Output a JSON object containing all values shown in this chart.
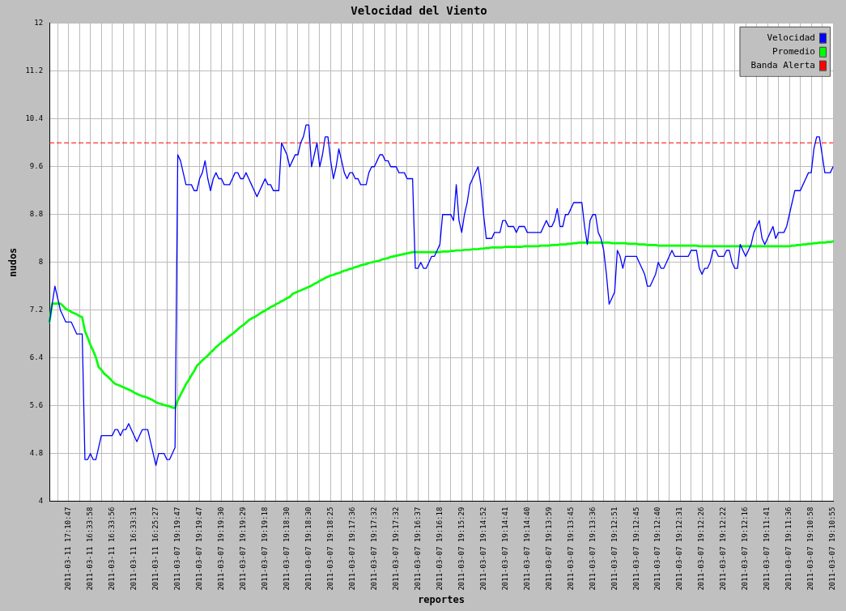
{
  "chart_data": {
    "type": "line",
    "title": "Velocidad del Viento",
    "xlabel": "reportes",
    "ylabel": "nudos",
    "categories": [
      null,
      null,
      null,
      null,
      null,
      null,
      null,
      "2011-03-11 17:10:47",
      null,
      null,
      null,
      null,
      null,
      null,
      null,
      "2011-03-11 16:33:58",
      null,
      null,
      null,
      null,
      null,
      null,
      null,
      "2011-03-11 16:33:56",
      null,
      null,
      null,
      null,
      null,
      null,
      null,
      "2011-03-11 16:33:31",
      null,
      null,
      null,
      null,
      null,
      null,
      null,
      "2011-03-11 16:25:27",
      null,
      null,
      null,
      null,
      null,
      null,
      null,
      "2011-03-07 19:19:47",
      null,
      null,
      null,
      null,
      null,
      null,
      null,
      "2011-03-07 19:19:47",
      null,
      null,
      null,
      null,
      null,
      null,
      null,
      "2011-03-07 19:19:30",
      null,
      null,
      null,
      null,
      null,
      null,
      null,
      "2011-03-07 19:19:29",
      null,
      null,
      null,
      null,
      null,
      null,
      null,
      "2011-03-07 19:19:18",
      null,
      null,
      null,
      null,
      null,
      null,
      null,
      "2011-03-07 19:18:30",
      null,
      null,
      null,
      null,
      null,
      null,
      null,
      "2011-03-07 19:18:30",
      null,
      null,
      null,
      null,
      null,
      null,
      null,
      "2011-03-07 19:18:25",
      null,
      null,
      null,
      null,
      null,
      null,
      null,
      "2011-03-07 19:17:36",
      null,
      null,
      null,
      null,
      null,
      null,
      null,
      "2011-03-07 19:17:32",
      null,
      null,
      null,
      null,
      null,
      null,
      null,
      "2011-03-07 19:17:32",
      null,
      null,
      null,
      null,
      null,
      null,
      null,
      "2011-03-07 19:16:37",
      null,
      null,
      null,
      null,
      null,
      null,
      null,
      "2011-03-07 19:16:18",
      null,
      null,
      null,
      null,
      null,
      null,
      null,
      "2011-03-07 19:15:29",
      null,
      null,
      null,
      null,
      null,
      null,
      null,
      "2011-03-07 19:14:52",
      null,
      null,
      null,
      null,
      null,
      null,
      null,
      "2011-03-07 19:14:41",
      null,
      null,
      null,
      null,
      null,
      null,
      null,
      "2011-03-07 19:14:40",
      null,
      null,
      null,
      null,
      null,
      null,
      null,
      "2011-03-07 19:13:59",
      null,
      null,
      null,
      null,
      null,
      null,
      null,
      "2011-03-07 19:13:45",
      null,
      null,
      null,
      null,
      null,
      null,
      null,
      "2011-03-07 19:13:36",
      null,
      null,
      null,
      null,
      null,
      null,
      null,
      "2011-03-07 19:12:51",
      null,
      null,
      null,
      null,
      null,
      null,
      null,
      "2011-03-07 19:12:45",
      null,
      null,
      null,
      null,
      null,
      null,
      null,
      "2011-03-07 19:12:40",
      null,
      null,
      null,
      null,
      null,
      null,
      null,
      "2011-03-07 19:12:31",
      null,
      null,
      null,
      null,
      null,
      null,
      null,
      "2011-03-07 19:12:26",
      null,
      null,
      null,
      null,
      null,
      null,
      null,
      "2011-03-07 19:12:22",
      null,
      null,
      null,
      null,
      null,
      null,
      null,
      "2011-03-07 19:12:16",
      null,
      null,
      null,
      null,
      null,
      null,
      null,
      "2011-03-07 19:11:41",
      null,
      null,
      null,
      null,
      null,
      null,
      null,
      "2011-03-07 19:11:36",
      null,
      null,
      null,
      null,
      null,
      null,
      null,
      "2011-03-07 19:10:58",
      null,
      null,
      null,
      null,
      null,
      null,
      null,
      "2011-03-07 19:10:55"
    ],
    "series": [
      {
        "name": "Velocidad",
        "color": "#0000ff",
        "values": [
          7.0,
          7.3,
          7.6,
          7.4,
          7.2,
          7.1,
          7.0,
          7.0,
          7.0,
          6.9,
          6.8,
          6.8,
          6.8,
          4.7,
          4.7,
          4.8,
          4.7,
          4.7,
          4.9,
          5.1,
          5.1,
          5.1,
          5.1,
          5.1,
          5.2,
          5.2,
          5.1,
          5.2,
          5.2,
          5.3,
          5.2,
          5.1,
          5.0,
          5.1,
          5.2,
          5.2,
          5.2,
          5.0,
          4.8,
          4.6,
          4.8,
          4.8,
          4.8,
          4.7,
          4.7,
          4.8,
          4.9,
          9.8,
          9.7,
          9.5,
          9.3,
          9.3,
          9.3,
          9.2,
          9.2,
          9.4,
          9.5,
          9.7,
          9.4,
          9.2,
          9.4,
          9.5,
          9.4,
          9.4,
          9.3,
          9.3,
          9.3,
          9.4,
          9.5,
          9.5,
          9.4,
          9.4,
          9.5,
          9.4,
          9.3,
          9.2,
          9.1,
          9.2,
          9.3,
          9.4,
          9.3,
          9.3,
          9.2,
          9.2,
          9.2,
          10.0,
          9.9,
          9.8,
          9.6,
          9.7,
          9.8,
          9.8,
          10.0,
          10.1,
          10.3,
          10.3,
          9.6,
          9.8,
          10.0,
          9.6,
          9.8,
          10.1,
          10.1,
          9.7,
          9.4,
          9.6,
          9.9,
          9.7,
          9.5,
          9.4,
          9.5,
          9.5,
          9.4,
          9.4,
          9.3,
          9.3,
          9.3,
          9.5,
          9.6,
          9.6,
          9.7,
          9.8,
          9.8,
          9.7,
          9.7,
          9.6,
          9.6,
          9.6,
          9.5,
          9.5,
          9.5,
          9.4,
          9.4,
          9.4,
          7.9,
          7.9,
          8.0,
          7.9,
          7.9,
          8.0,
          8.1,
          8.1,
          8.2,
          8.3,
          8.8,
          8.8,
          8.8,
          8.8,
          8.7,
          9.3,
          8.7,
          8.5,
          8.8,
          9.0,
          9.3,
          9.4,
          9.5,
          9.6,
          9.3,
          8.8,
          8.4,
          8.4,
          8.4,
          8.5,
          8.5,
          8.5,
          8.7,
          8.7,
          8.6,
          8.6,
          8.6,
          8.5,
          8.6,
          8.6,
          8.6,
          8.5,
          8.5,
          8.5,
          8.5,
          8.5,
          8.5,
          8.6,
          8.7,
          8.6,
          8.6,
          8.7,
          8.9,
          8.6,
          8.6,
          8.8,
          8.8,
          8.9,
          9.0,
          9.0,
          9.0,
          9.0,
          8.6,
          8.3,
          8.7,
          8.8,
          8.8,
          8.5,
          8.4,
          8.2,
          7.8,
          7.3,
          7.4,
          7.5,
          8.2,
          8.1,
          7.9,
          8.1,
          8.1,
          8.1,
          8.1,
          8.1,
          8.0,
          7.9,
          7.8,
          7.6,
          7.6,
          7.7,
          7.8,
          8.0,
          7.9,
          7.9,
          8.0,
          8.1,
          8.2,
          8.1,
          8.1,
          8.1,
          8.1,
          8.1,
          8.1,
          8.2,
          8.2,
          8.2,
          7.9,
          7.8,
          7.9,
          7.9,
          8.0,
          8.2,
          8.2,
          8.1,
          8.1,
          8.1,
          8.2,
          8.2,
          8.0,
          7.9,
          7.9,
          8.3,
          8.2,
          8.1,
          8.2,
          8.3,
          8.5,
          8.6,
          8.7,
          8.4,
          8.3,
          8.4,
          8.5,
          8.6,
          8.4,
          8.5,
          8.5,
          8.5,
          8.6,
          8.8,
          9.0,
          9.2,
          9.2,
          9.2,
          9.3,
          9.4,
          9.5,
          9.5,
          9.9,
          10.1,
          10.1,
          9.8,
          9.5,
          9.5,
          9.5,
          9.6
        ]
      },
      {
        "name": "Promedio",
        "color": "#00ff00",
        "values": [
          7.0,
          7.31,
          7.31,
          7.31,
          7.31,
          7.27,
          7.22,
          7.2,
          7.17,
          7.15,
          7.13,
          7.1,
          7.08,
          6.85,
          6.74,
          6.62,
          6.52,
          6.41,
          6.25,
          6.2,
          6.14,
          6.1,
          6.06,
          6.01,
          5.97,
          5.95,
          5.93,
          5.91,
          5.89,
          5.87,
          5.85,
          5.82,
          5.8,
          5.78,
          5.76,
          5.75,
          5.73,
          5.71,
          5.69,
          5.66,
          5.64,
          5.63,
          5.61,
          5.6,
          5.59,
          5.57,
          5.56,
          5.69,
          5.78,
          5.87,
          5.96,
          6.03,
          6.11,
          6.18,
          6.27,
          6.31,
          6.36,
          6.4,
          6.44,
          6.49,
          6.53,
          6.58,
          6.62,
          6.66,
          6.69,
          6.73,
          6.77,
          6.8,
          6.84,
          6.88,
          6.92,
          6.95,
          6.99,
          7.03,
          7.06,
          7.08,
          7.11,
          7.14,
          7.17,
          7.19,
          7.22,
          7.25,
          7.27,
          7.3,
          7.32,
          7.35,
          7.37,
          7.4,
          7.42,
          7.47,
          7.49,
          7.51,
          7.53,
          7.55,
          7.57,
          7.59,
          7.61,
          7.64,
          7.66,
          7.69,
          7.71,
          7.74,
          7.76,
          7.78,
          7.79,
          7.81,
          7.82,
          7.84,
          7.86,
          7.87,
          7.89,
          7.9,
          7.92,
          7.93,
          7.95,
          7.96,
          7.97,
          7.99,
          8.0,
          8.01,
          8.02,
          8.03,
          8.05,
          8.06,
          8.07,
          8.09,
          8.1,
          8.11,
          8.12,
          8.13,
          8.14,
          8.15,
          8.16,
          8.17,
          8.17,
          8.17,
          8.17,
          8.17,
          8.17,
          8.17,
          8.17,
          8.17,
          8.17,
          8.17,
          8.18,
          8.18,
          8.18,
          8.19,
          8.19,
          8.2,
          8.2,
          8.2,
          8.21,
          8.21,
          8.21,
          8.22,
          8.22,
          8.22,
          8.23,
          8.23,
          8.24,
          8.24,
          8.25,
          8.25,
          8.25,
          8.25,
          8.25,
          8.26,
          8.26,
          8.26,
          8.26,
          8.26,
          8.26,
          8.26,
          8.27,
          8.27,
          8.27,
          8.27,
          8.27,
          8.27,
          8.28,
          8.28,
          8.28,
          8.28,
          8.29,
          8.29,
          8.29,
          8.3,
          8.3,
          8.3,
          8.31,
          8.31,
          8.32,
          8.32,
          8.33,
          8.33,
          8.33,
          8.33,
          8.33,
          8.33,
          8.33,
          8.33,
          8.33,
          8.33,
          8.33,
          8.33,
          8.32,
          8.32,
          8.32,
          8.32,
          8.32,
          8.32,
          8.31,
          8.31,
          8.31,
          8.31,
          8.3,
          8.3,
          8.3,
          8.29,
          8.29,
          8.29,
          8.29,
          8.28,
          8.28,
          8.28,
          8.28,
          8.28,
          8.28,
          8.28,
          8.28,
          8.28,
          8.28,
          8.28,
          8.28,
          8.28,
          8.28,
          8.28,
          8.27,
          8.27,
          8.27,
          8.27,
          8.27,
          8.27,
          8.27,
          8.27,
          8.27,
          8.27,
          8.27,
          8.27,
          8.27,
          8.27,
          8.27,
          8.27,
          8.27,
          8.27,
          8.27,
          8.27,
          8.27,
          8.27,
          8.27,
          8.27,
          8.27,
          8.27,
          8.27,
          8.27,
          8.27,
          8.27,
          8.27,
          8.27,
          8.27,
          8.27,
          8.28,
          8.28,
          8.29,
          8.29,
          8.3,
          8.3,
          8.31,
          8.31,
          8.32,
          8.32,
          8.33,
          8.33,
          8.33,
          8.34,
          8.34,
          8.35
        ]
      }
    ],
    "ref_lines": [
      {
        "axis": "y",
        "value": 10.0,
        "label": "Banda Alerta",
        "color": "#ff0000",
        "line_style": "dashed"
      }
    ],
    "ylim": [
      4,
      12
    ],
    "yticks": [
      4,
      4.8,
      5.6,
      6.4,
      7.2,
      8,
      8.8,
      9.6,
      10.4,
      11.2,
      12
    ],
    "grid": true,
    "legend": "top right",
    "marker": "none",
    "line_style": "solid"
  }
}
